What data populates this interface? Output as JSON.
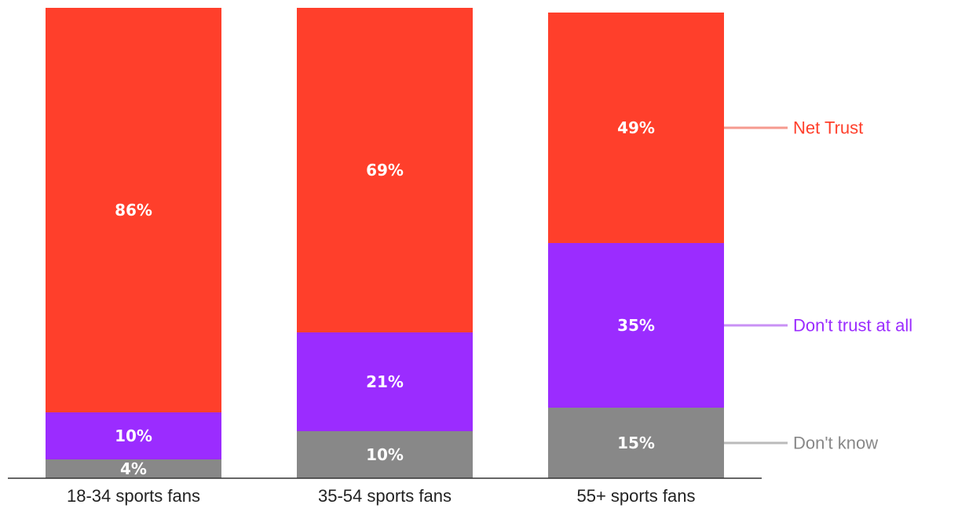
{
  "chart_data": {
    "type": "bar",
    "stacked": true,
    "categories": [
      "18-34 sports fans",
      "35-54 sports fans",
      "55+ sports fans"
    ],
    "series": [
      {
        "name": "Don't know",
        "color": "#888888",
        "legend_color": "#bbbbbb",
        "text_color": "#888888",
        "values": [
          4,
          10,
          15
        ],
        "labels": [
          "4%",
          "10%",
          "15%"
        ]
      },
      {
        "name": "Don't trust at all",
        "color": "#9b2cff",
        "legend_color": "#c990f5",
        "text_color": "#9b2cff",
        "values": [
          10,
          21,
          35
        ],
        "labels": [
          "10%",
          "21%",
          "35%"
        ]
      },
      {
        "name": "Net Trust",
        "color": "#ff3f2b",
        "legend_color": "#f59a8f",
        "text_color": "#ff3f2b",
        "values": [
          86,
          69,
          49
        ],
        "labels": [
          "86%",
          "69%",
          "49%"
        ]
      }
    ],
    "ylim": [
      0,
      100
    ],
    "title": "",
    "xlabel": "",
    "ylabel": "",
    "legend": "right"
  }
}
